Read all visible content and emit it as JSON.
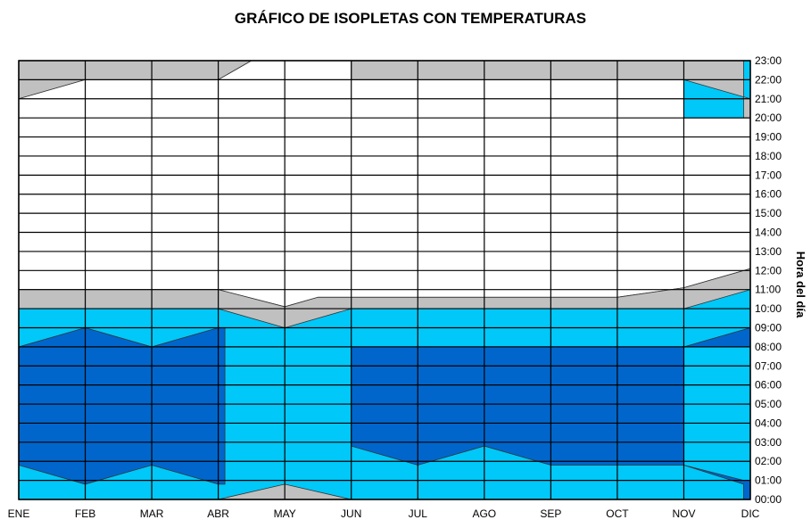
{
  "chart_data": {
    "type": "area",
    "title": "GRÁFICO DE ISOPLETAS CON TEMPERATURAS",
    "xlabel": "",
    "ylabel": "Hora del día",
    "months": [
      "ENE",
      "FEB",
      "MAR",
      "ABR",
      "MAY",
      "JUN",
      "JUL",
      "AGO",
      "SEP",
      "OCT",
      "NOV",
      "DIC"
    ],
    "hours": [
      "00:00",
      "01:00",
      "02:00",
      "03:00",
      "04:00",
      "05:00",
      "06:00",
      "07:00",
      "08:00",
      "09:00",
      "10:00",
      "11:00",
      "12:00",
      "13:00",
      "14:00",
      "15:00",
      "16:00",
      "17:00",
      "18:00",
      "19:00",
      "20:00",
      "21:00",
      "22:00",
      "23:00"
    ],
    "ylim": [
      0,
      23
    ],
    "grid": true,
    "colors": {
      "light_blue": "#00c8f8",
      "dark_blue": "#0066cc",
      "gray": "#c0c0c0",
      "white": "#ffffff",
      "grid": "#000000"
    },
    "bands": [
      {
        "color": "light_blue",
        "points": [
          [
            0,
            0
          ],
          [
            11,
            0
          ],
          [
            11,
            23
          ],
          [
            0,
            23
          ]
        ]
      },
      {
        "color": "gray",
        "points": [
          [
            0,
            21
          ],
          [
            1,
            22
          ],
          [
            3,
            22
          ],
          [
            3.5,
            23
          ],
          [
            0,
            23
          ]
        ]
      },
      {
        "color": "gray",
        "points": [
          [
            5,
            22
          ],
          [
            10,
            22
          ],
          [
            11,
            21
          ],
          [
            11,
            20
          ],
          [
            10.9,
            20
          ],
          [
            10.9,
            23
          ],
          [
            5,
            23
          ]
        ]
      },
      {
        "color": "white",
        "points": [
          [
            0,
            11
          ],
          [
            3,
            11
          ],
          [
            4,
            10.1
          ],
          [
            4.5,
            10.6
          ],
          [
            9,
            10.6
          ],
          [
            10,
            11.1
          ],
          [
            11,
            12.1
          ],
          [
            11,
            20
          ],
          [
            10,
            20
          ],
          [
            10,
            22
          ],
          [
            5,
            22
          ],
          [
            5,
            23
          ],
          [
            3.5,
            23
          ],
          [
            3,
            22
          ],
          [
            1,
            22
          ],
          [
            0,
            21
          ]
        ]
      },
      {
        "color": "gray",
        "points": [
          [
            0,
            10
          ],
          [
            3,
            10
          ],
          [
            4,
            9
          ],
          [
            5,
            10
          ],
          [
            10,
            10
          ],
          [
            11,
            11
          ],
          [
            11,
            12.1
          ],
          [
            10,
            11.1
          ],
          [
            9,
            10.6
          ],
          [
            4.5,
            10.6
          ],
          [
            4,
            10.1
          ],
          [
            3,
            11
          ],
          [
            0,
            11
          ]
        ]
      },
      {
        "color": "dark_blue",
        "points": [
          [
            0,
            8
          ],
          [
            1,
            9
          ],
          [
            2,
            8
          ],
          [
            3,
            9
          ],
          [
            3.1,
            9
          ],
          [
            3.1,
            0.8
          ],
          [
            3,
            0.8
          ],
          [
            2,
            1.8
          ],
          [
            1,
            0.8
          ],
          [
            0,
            1.8
          ]
        ]
      },
      {
        "color": "dark_blue",
        "points": [
          [
            5,
            8
          ],
          [
            11,
            8
          ],
          [
            11,
            9
          ],
          [
            10,
            8
          ],
          [
            10,
            1.8
          ],
          [
            10.9,
            1
          ],
          [
            11,
            1
          ],
          [
            11,
            0
          ],
          [
            10.9,
            0
          ],
          [
            10.9,
            0.8
          ],
          [
            10,
            1.8
          ],
          [
            8,
            1.8
          ],
          [
            7,
            2.8
          ],
          [
            6,
            1.8
          ],
          [
            5,
            2.8
          ]
        ]
      },
      {
        "color": "gray",
        "points": [
          [
            3,
            0
          ],
          [
            4,
            0.8
          ],
          [
            5,
            0
          ],
          [
            5,
            0
          ]
        ]
      }
    ]
  }
}
